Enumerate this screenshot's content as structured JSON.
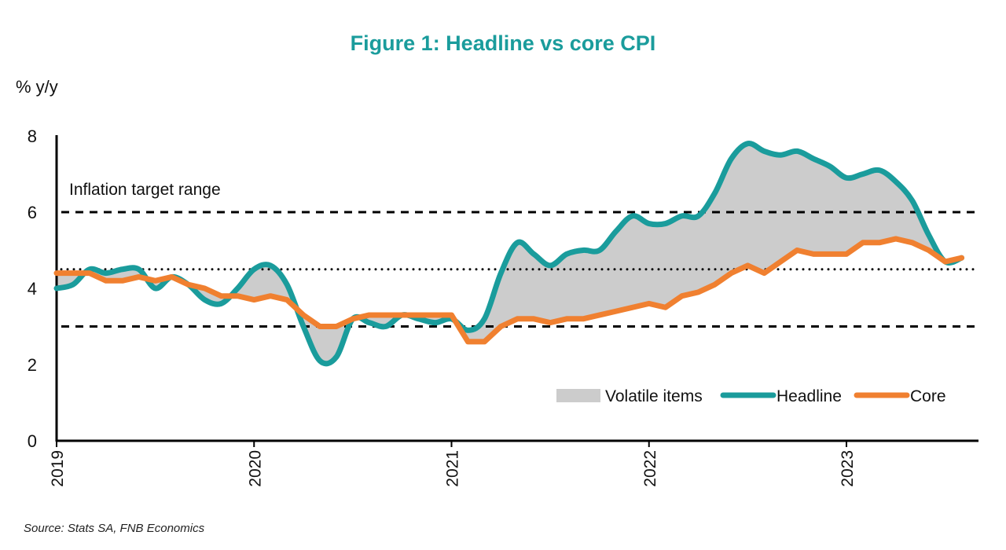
{
  "chart_data": {
    "type": "line",
    "title": "Figure 1: Headline vs core CPI",
    "ylabel": "% y/y",
    "ylim": [
      0,
      8
    ],
    "yticks": [
      0,
      2,
      4,
      6,
      8
    ],
    "xticks": [
      "2019",
      "2020",
      "2021",
      "2022",
      "2023"
    ],
    "x_start": "2019-01",
    "x_end": "2023-08",
    "frequency": "monthly",
    "annotation": "Inflation target range",
    "reference_lines": [
      {
        "value": 6,
        "style": "dashed"
      },
      {
        "value": 4.5,
        "style": "dotted"
      },
      {
        "value": 3,
        "style": "dashed"
      }
    ],
    "legend_position": "bottom-right",
    "series": [
      {
        "name": "Headline",
        "color": "#1a9c9c",
        "values": [
          4.0,
          4.1,
          4.5,
          4.4,
          4.5,
          4.5,
          4.0,
          4.3,
          4.1,
          3.7,
          3.6,
          4.0,
          4.5,
          4.6,
          4.1,
          3.0,
          2.1,
          2.2,
          3.2,
          3.1,
          3.0,
          3.3,
          3.2,
          3.1,
          3.2,
          2.9,
          3.2,
          4.4,
          5.2,
          4.9,
          4.6,
          4.9,
          5.0,
          5.0,
          5.5,
          5.9,
          5.7,
          5.7,
          5.9,
          5.9,
          6.5,
          7.4,
          7.8,
          7.6,
          7.5,
          7.6,
          7.4,
          7.2,
          6.9,
          7.0,
          7.1,
          6.8,
          6.3,
          5.4,
          4.7,
          4.8
        ]
      },
      {
        "name": "Core",
        "color": "#f08030",
        "values": [
          4.4,
          4.4,
          4.4,
          4.2,
          4.2,
          4.3,
          4.2,
          4.3,
          4.1,
          4.0,
          3.8,
          3.8,
          3.7,
          3.8,
          3.7,
          3.3,
          3.0,
          3.0,
          3.2,
          3.3,
          3.3,
          3.3,
          3.3,
          3.3,
          3.3,
          2.6,
          2.6,
          3.0,
          3.2,
          3.2,
          3.1,
          3.2,
          3.2,
          3.3,
          3.4,
          3.5,
          3.6,
          3.5,
          3.8,
          3.9,
          4.1,
          4.4,
          4.6,
          4.4,
          4.7,
          5.0,
          4.9,
          4.9,
          4.9,
          5.2,
          5.2,
          5.3,
          5.2,
          5.0,
          4.7,
          4.8
        ]
      }
    ],
    "fill": {
      "name": "Volatile items",
      "color": "#cccccc",
      "between": [
        "Headline",
        "Core"
      ]
    }
  },
  "source": "Source: Stats SA, FNB Economics"
}
